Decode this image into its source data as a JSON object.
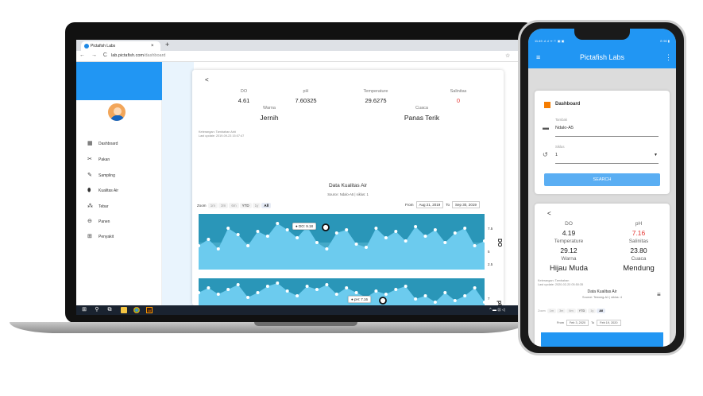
{
  "browser": {
    "tab_title": "Pictafish Labs",
    "tab_close": "×",
    "new_tab": "+",
    "nav": "← → C",
    "url_host": "lab.pictafish.com",
    "url_path": "/dashboard",
    "star": "☆"
  },
  "sidebar": {
    "items": [
      {
        "label": "Dashboard",
        "icon": "dashboard-icon",
        "glyph": "▦"
      },
      {
        "label": "Pakan",
        "icon": "feed-icon",
        "glyph": "✂"
      },
      {
        "label": "Sampling",
        "icon": "sampling-icon",
        "glyph": "✎"
      },
      {
        "label": "Kualitas Air",
        "icon": "water-quality-icon",
        "glyph": "⬮"
      },
      {
        "label": "Tebar",
        "icon": "seed-icon",
        "glyph": "⁂"
      },
      {
        "label": "Panen",
        "icon": "harvest-icon",
        "glyph": "⊖"
      },
      {
        "label": "Penyakit",
        "icon": "disease-icon",
        "glyph": "⊞"
      }
    ]
  },
  "dashboard": {
    "share": "<",
    "stats": [
      {
        "label": "DO",
        "value": "4.61"
      },
      {
        "label": "pH",
        "value": "7.60325"
      },
      {
        "label": "Temperature",
        "value": "29.6275"
      },
      {
        "label": "Salinitas",
        "value": "0"
      }
    ],
    "warna_label": "Warna",
    "warna_value": "Jernih",
    "cuaca_label": "Cuaca",
    "cuaca_value": "Panas Terik",
    "note1": "Keterangan: Tambahan Air#",
    "note2": "Last update: 2019-09-23 15:07:47",
    "chart_title": "Data Kualitas Air",
    "chart_source": "Source: Ndalo-A5 | siklus: 1",
    "zoom_label": "Zoom",
    "zoom_buttons": [
      "1m",
      "3m",
      "6m",
      "YTD",
      "1y",
      "All"
    ],
    "from_label": "From",
    "from_value": "Aug 21, 2019",
    "to_label": "To",
    "to_value": "Sep 30, 2019",
    "do_axis": "DO",
    "ph_axis": "pH",
    "do_ticks": [
      "7.5",
      "5",
      "2.5"
    ],
    "ph_ticks": [
      "7",
      "6",
      "5"
    ],
    "do_tooltip": "● DO: 9.18",
    "ph_tooltip": "● pH: 7.16"
  },
  "phone": {
    "status_left": "11:49 .ıl .ıl ᯤ ⚐ ▣ ▣",
    "status_right": "⊙ 90 ▮",
    "app_title": "Pictafish Labs",
    "menu": "≡",
    "kebab": "⋮",
    "card_title": "Dashboard",
    "tambak_label": "Tambak",
    "tambak_value": "Ndalo-A5",
    "siklus_label": "Siklus",
    "siklus_value": "1",
    "search": "SEARCH",
    "share": "<",
    "stats": [
      {
        "label": "DO",
        "value": "4.19",
        "color": "#222"
      },
      {
        "label": "pH",
        "value": "7.16",
        "color": "#e53935"
      },
      {
        "label": "Temperature",
        "value": "29.12",
        "color": "#222"
      },
      {
        "label": "Salinitas",
        "value": "23.80",
        "color": "#222"
      },
      {
        "label": "Warna",
        "value": "Hijau Muda",
        "color": "#222"
      },
      {
        "label": "Cuaca",
        "value": "Mendung",
        "color": "#222"
      }
    ],
    "note1": "Keterangan: Tambahan",
    "note2": "Last update: 2020-02-20 05:50:35",
    "chart_title": "Data Kualitas Air",
    "chart_source": "Source: Tewong-A1 | siklus: 4",
    "zoom_label": "Zoom",
    "zoom_buttons": [
      "1m",
      "3m",
      "6m",
      "YTD",
      "1y",
      "All"
    ],
    "from_label": "From",
    "from_value": "Feb 3, 2020",
    "to_label": "To",
    "to_value": "Feb 19, 2020",
    "chart_menu": "≡"
  },
  "taskbar": {
    "start": "⊞",
    "search": "⚲",
    "task": "⧉",
    "tray": "^ ▬ ⊡ ◁"
  },
  "colors": {
    "primary": "#2196f3",
    "salinitas": "#e53935",
    "chart_fill": "#5bc0e8",
    "chart_bg": "#2a96b8"
  }
}
